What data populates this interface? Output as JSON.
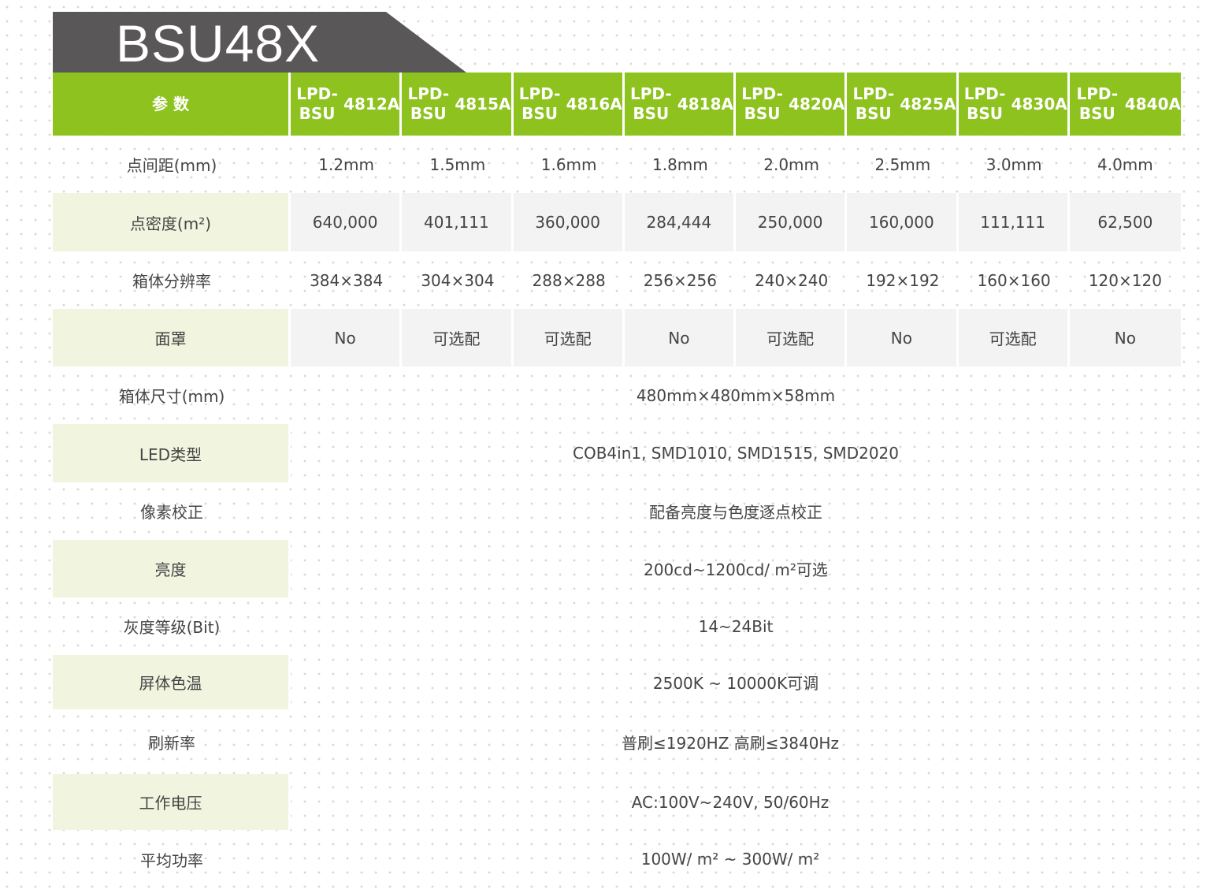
{
  "title": "BSU48X",
  "header": {
    "param_label": "参 数",
    "models": [
      [
        "LPD-BSU",
        "4812A"
      ],
      [
        "LPD-BSU",
        "4815A"
      ],
      [
        "LPD-BSU",
        "4816A"
      ],
      [
        "LPD-BSU",
        "4818A"
      ],
      [
        "LPD-BSU",
        "4820A"
      ],
      [
        "LPD-BSU",
        "4825A"
      ],
      [
        "LPD-BSU",
        "4830A"
      ],
      [
        "LPD-BSU",
        "4840A"
      ]
    ]
  },
  "rows": [
    {
      "label": "点间距(mm)",
      "values": [
        "1.2mm",
        "1.5mm",
        "1.6mm",
        "1.8mm",
        "2.0mm",
        "2.5mm",
        "3.0mm",
        "4.0mm"
      ]
    },
    {
      "label": "点密度(m²)",
      "values": [
        "640,000",
        "401,111",
        "360,000",
        "284,444",
        "250,000",
        "160,000",
        "111,111",
        "62,500"
      ]
    },
    {
      "label": "箱体分辨率",
      "values": [
        "384×384",
        "304×304",
        "288×288",
        "256×256",
        "240×240",
        "192×192",
        "160×160",
        "120×120"
      ]
    },
    {
      "label": "面罩",
      "values": [
        "No",
        "可选配",
        "可选配",
        "No",
        "可选配",
        "No",
        "可选配",
        "No"
      ]
    },
    {
      "label": "箱体尺寸(mm)",
      "value": "480mm×480mm×58mm"
    },
    {
      "label": "LED类型",
      "value": "COB4in1, SMD1010, SMD1515, SMD2020"
    },
    {
      "label": "像素校正",
      "value": "配备亮度与色度逐点校正"
    },
    {
      "label": "亮度",
      "value": "200cd~1200cd/ m²可选"
    },
    {
      "label": "灰度等级(Bit)",
      "value": "14~24Bit"
    },
    {
      "label": "屏体色温",
      "value": "2500K ~ 10000K可调"
    },
    {
      "label": "刷新率",
      "value": "普刷≤1920HZ   高刷≤3840Hz"
    },
    {
      "label": "工作电压",
      "value": "AC:100V~240V,  50/60Hz"
    },
    {
      "label": "平均功率",
      "value": "100W/ m² ~ 300W/ m²"
    }
  ],
  "colors": {
    "header_green": "#8dc21f",
    "title_bar": "#595757",
    "label_shade": "#f1f5df",
    "value_shade": "#f3f3f3"
  }
}
